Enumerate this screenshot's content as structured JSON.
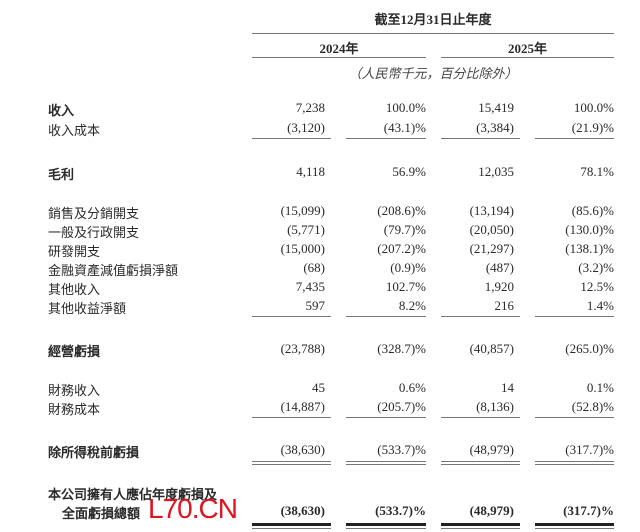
{
  "header": {
    "period": "截至12月31日止年度",
    "years": [
      "2024年",
      "2025年"
    ],
    "unit_note": "（人民幣千元，百分比除外）"
  },
  "rows": [
    {
      "label": "收入",
      "bold": true,
      "values": [
        "7,238",
        "100.0%",
        "15,419",
        "100.0%"
      ]
    },
    {
      "label": "收入成本",
      "bold": false,
      "values": [
        "(3,120)",
        "(43.1)%",
        "(3,384)",
        "(21.9)%"
      ],
      "rule": "single"
    },
    {
      "label": "毛利",
      "bold": true,
      "values": [
        "4,118",
        "56.9%",
        "12,035",
        "78.1%"
      ]
    },
    {
      "label": "銷售及分銷開支",
      "bold": false,
      "values": [
        "(15,099)",
        "(208.6)%",
        "(13,194)",
        "(85.6)%"
      ]
    },
    {
      "label": "一般及行政開支",
      "bold": false,
      "values": [
        "(5,771)",
        "(79.7)%",
        "(20,050)",
        "(130.0)%"
      ]
    },
    {
      "label": "研發開支",
      "bold": false,
      "values": [
        "(15,000)",
        "(207.2)%",
        "(21,297)",
        "(138.1)%"
      ]
    },
    {
      "label": "金融資產減值虧損淨額",
      "bold": false,
      "values": [
        "(68)",
        "(0.9)%",
        "(487)",
        "(3.2)%"
      ]
    },
    {
      "label": "其他收入",
      "bold": false,
      "values": [
        "7,435",
        "102.7%",
        "1,920",
        "12.5%"
      ]
    },
    {
      "label": "其他收益淨額",
      "bold": false,
      "values": [
        "597",
        "8.2%",
        "216",
        "1.4%"
      ],
      "rule": "single"
    },
    {
      "label": "經營虧損",
      "bold": true,
      "values": [
        "(23,788)",
        "(328.7)%",
        "(40,857)",
        "(265.0)%"
      ]
    },
    {
      "label": "財務收入",
      "bold": false,
      "values": [
        "45",
        "0.6%",
        "14",
        "0.1%"
      ]
    },
    {
      "label": "財務成本",
      "bold": false,
      "values": [
        "(14,887)",
        "(205.7)%",
        "(8,136)",
        "(52.8)%"
      ],
      "rule": "single"
    },
    {
      "label": "除所得稅前虧損",
      "bold": true,
      "values": [
        "(38,630)",
        "(533.7)%",
        "(48,979)",
        "(317.7)%"
      ],
      "rule": "double"
    },
    {
      "label": "本公司擁有人應佔年度虧損及",
      "label2": "全面虧損總額",
      "bold": true,
      "boldValues": true,
      "values": [
        "(38,630)",
        "(533.7)%",
        "(48,979)",
        "(317.7)%"
      ],
      "rule": "thick"
    }
  ],
  "watermark": "L70.CN"
}
